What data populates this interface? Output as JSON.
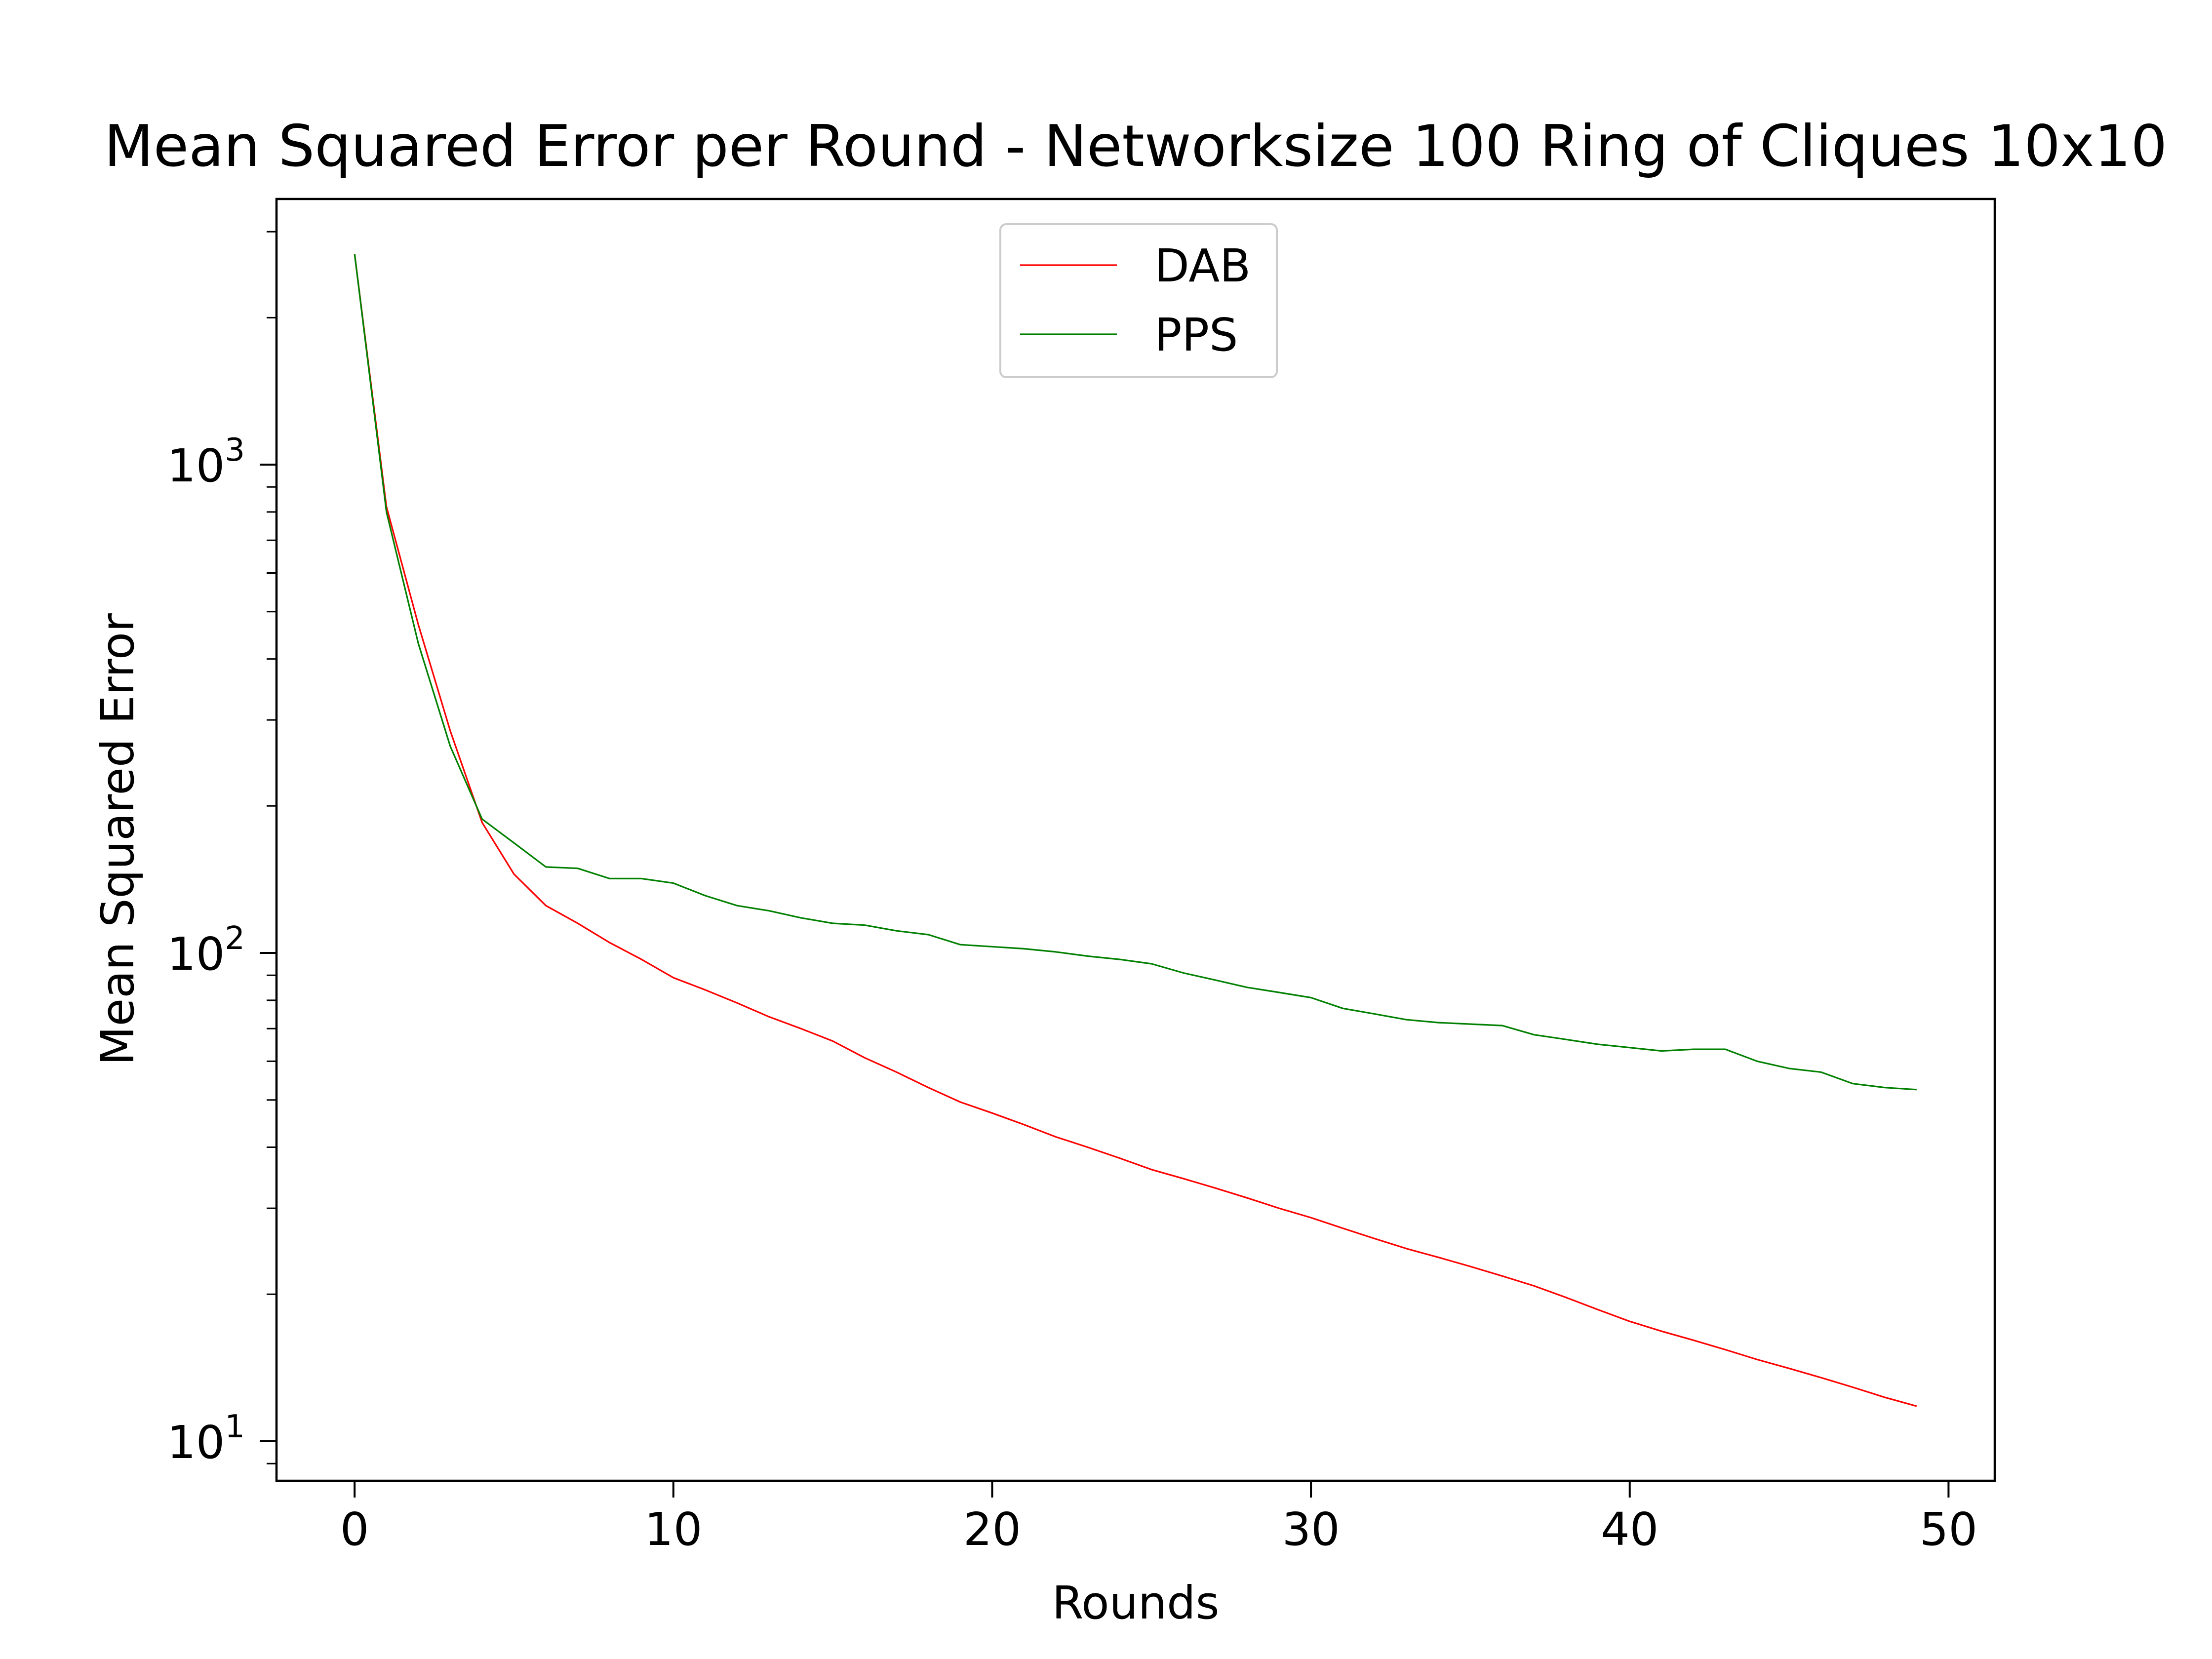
{
  "chart_data": {
    "type": "line",
    "title": "Mean Squared Error per Round - Networksize 100 Ring of Cliques 10x10",
    "xlabel": "Rounds",
    "ylabel": "Mean Squared Error",
    "xlim": [
      -2.45,
      51.45
    ],
    "ylim": [
      8.3,
      3500
    ],
    "yscale": "log",
    "xticks": [
      0,
      10,
      20,
      30,
      40,
      50
    ],
    "xtick_labels": [
      "0",
      "10",
      "20",
      "30",
      "40",
      "50"
    ],
    "yticks": [
      10,
      100,
      1000
    ],
    "ytick_labels": [
      {
        "base": "10",
        "exp": "1"
      },
      {
        "base": "10",
        "exp": "2"
      },
      {
        "base": "10",
        "exp": "3"
      }
    ],
    "grid": false,
    "legend_position": "upper center",
    "x": [
      0,
      1,
      2,
      3,
      4,
      5,
      6,
      7,
      8,
      9,
      10,
      11,
      12,
      13,
      14,
      15,
      16,
      17,
      18,
      19,
      20,
      21,
      22,
      23,
      24,
      25,
      26,
      27,
      28,
      29,
      30,
      31,
      32,
      33,
      34,
      35,
      36,
      37,
      38,
      39,
      40,
      41,
      42,
      43,
      44,
      45,
      46,
      47,
      48,
      49
    ],
    "series": [
      {
        "name": "DAB",
        "color": "#ff0000",
        "values": [
          2700,
          820,
          470,
          285,
          185,
          145,
          125,
          115,
          105,
          97,
          89,
          84,
          79,
          74,
          70,
          66,
          61,
          57,
          53,
          49.5,
          47,
          44.5,
          42,
          40,
          38,
          36,
          34.5,
          33,
          31.5,
          30,
          28.7,
          27.3,
          26,
          24.8,
          23.8,
          22.8,
          21.8,
          20.8,
          19.7,
          18.6,
          17.6,
          16.8,
          16.1,
          15.4,
          14.7,
          14.1,
          13.5,
          12.9,
          12.3,
          11.8
        ]
      },
      {
        "name": "PPS",
        "color": "#008000",
        "values": [
          2700,
          800,
          430,
          265,
          188,
          168,
          150,
          149,
          142,
          142,
          139,
          131,
          125,
          122,
          118,
          115,
          114,
          111,
          109,
          104,
          103,
          102,
          100.5,
          98.5,
          97,
          95,
          91,
          88,
          85,
          83,
          81,
          77,
          75,
          73,
          72,
          71.5,
          71,
          68,
          66.5,
          65,
          64,
          63,
          63.5,
          63.5,
          60,
          58,
          57,
          54,
          53,
          52.5
        ]
      }
    ]
  }
}
